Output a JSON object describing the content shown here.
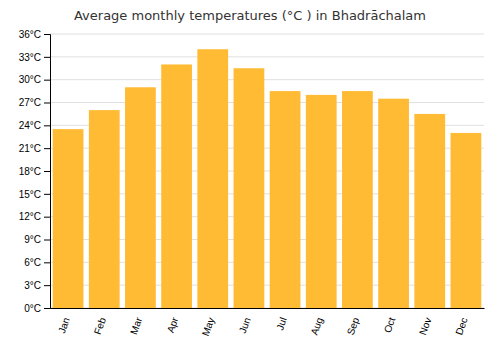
{
  "chart_data": {
    "type": "bar",
    "title": "Average monthly temperatures (°C ) in Bhadrāchalam",
    "categories": [
      "Jan",
      "Feb",
      "Mar",
      "Apr",
      "May",
      "Jun",
      "Jul",
      "Aug",
      "Sep",
      "Oct",
      "Nov",
      "Dec"
    ],
    "values": [
      23.5,
      26.0,
      29.0,
      32.0,
      34.0,
      31.5,
      28.5,
      28.0,
      28.5,
      27.5,
      25.5,
      23.0
    ],
    "color": "#FFBB33",
    "ylim": [
      0,
      36
    ],
    "yticks": [
      {
        "value": 0,
        "label": "0°C"
      },
      {
        "value": 3,
        "label": "3°C"
      },
      {
        "value": 6,
        "label": "6°C"
      },
      {
        "value": 9,
        "label": "9°C"
      },
      {
        "value": 12,
        "label": "12°C"
      },
      {
        "value": 15,
        "label": "15°C"
      },
      {
        "value": 18,
        "label": "18°C"
      },
      {
        "value": 21,
        "label": "21°C"
      },
      {
        "value": 24,
        "label": "24°C"
      },
      {
        "value": 27,
        "label": "27°C"
      },
      {
        "value": 30,
        "label": "30°C"
      },
      {
        "value": 33,
        "label": "33°C"
      },
      {
        "value": 36,
        "label": "36°C"
      }
    ],
    "grid": true
  }
}
